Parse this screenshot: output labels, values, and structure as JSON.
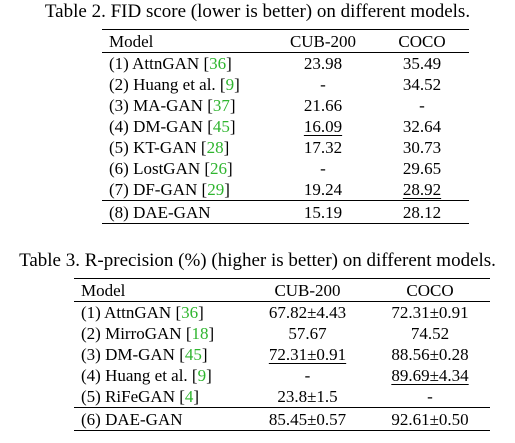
{
  "table2": {
    "caption": "Table 2. FID score (lower is better) on different models.",
    "headers": [
      "Model",
      "CUB-200",
      "COCO"
    ],
    "rows": [
      {
        "model": "(1) AttnGAN [",
        "cite": "36",
        "close": "]",
        "cub": "23.98",
        "coco": "35.49"
      },
      {
        "model": "(2) Huang et al. [",
        "cite": "9",
        "close": "]",
        "cub": "-",
        "coco": "34.52"
      },
      {
        "model": "(3) MA-GAN [",
        "cite": "37",
        "close": "]",
        "cub": "21.66",
        "coco": "-"
      },
      {
        "model": "(4) DM-GAN [",
        "cite": "45",
        "close": "]",
        "cub": "16.09",
        "coco": "32.64"
      },
      {
        "model": "(5) KT-GAN [",
        "cite": "28",
        "close": "]",
        "cub": "17.32",
        "coco": "30.73"
      },
      {
        "model": "(6) LostGAN [",
        "cite": "26",
        "close": "]",
        "cub": "-",
        "coco": "29.65"
      },
      {
        "model": "(7) DF-GAN [",
        "cite": "29",
        "close": "]",
        "cub": "19.24",
        "coco": "28.92"
      }
    ],
    "final": {
      "model": "(8) DAE-GAN",
      "cub": "15.19",
      "coco": "28.12"
    }
  },
  "table3": {
    "caption": "Table 3. R-precision (%) (higher is better) on different models.",
    "headers": [
      "Model",
      "CUB-200",
      "COCO"
    ],
    "rows": [
      {
        "model": "(1) AttnGAN [",
        "cite": "36",
        "close": "]",
        "cub": "67.82±4.43",
        "coco": "72.31±0.91"
      },
      {
        "model": "(2) MirroGAN [",
        "cite": "18",
        "close": "]",
        "cub": "57.67",
        "coco": "74.52"
      },
      {
        "model": "(3) DM-GAN [",
        "cite": "45",
        "close": "]",
        "cub": "72.31±0.91",
        "coco": "88.56±0.28"
      },
      {
        "model": "(4) Huang et al. [",
        "cite": "9",
        "close": "]",
        "cub": "-",
        "coco": "89.69±4.34"
      },
      {
        "model": "(5) RiFeGAN [",
        "cite": "4",
        "close": "]",
        "cub": "23.8±1.5",
        "coco": "-"
      }
    ],
    "final": {
      "model": "(6) DAE-GAN",
      "cub": "85.45±0.57",
      "coco": "92.61±0.50"
    }
  },
  "colors": {
    "citation": "#2fb52f",
    "text": "#000000"
  }
}
